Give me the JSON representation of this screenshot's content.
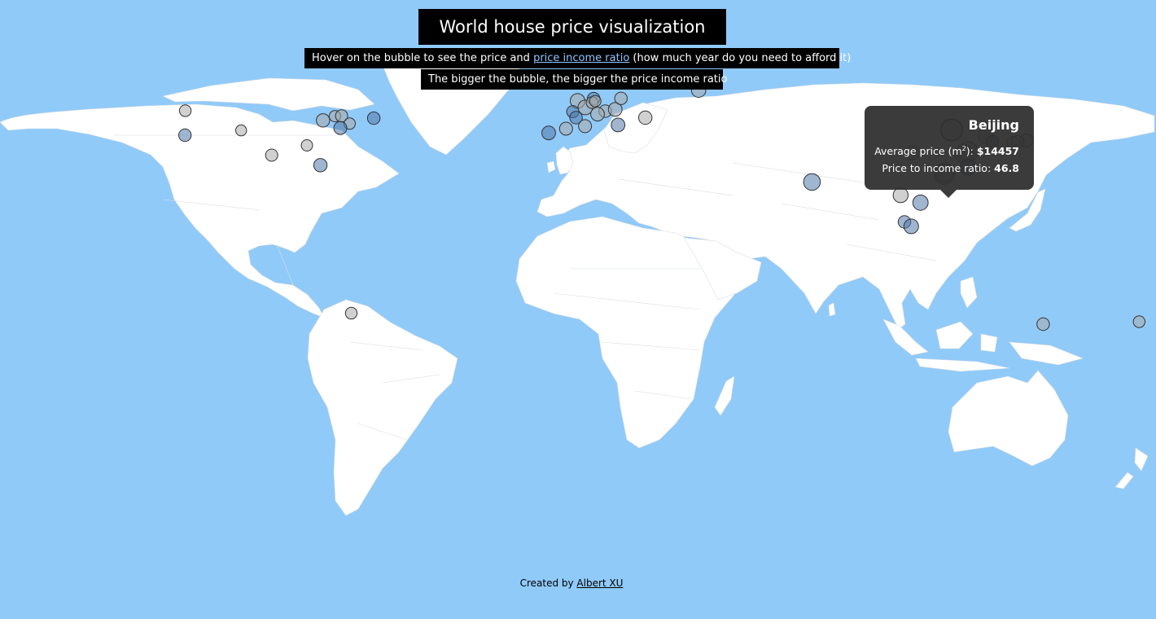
{
  "title": "World house price visualization",
  "subtitle": {
    "before": "Hover on the bubble to see the price and ",
    "link": "price income ratio",
    "after": " (how much year do you need to afford it)"
  },
  "subtitle2": "The bigger the bubble, the bigger the price income ratio",
  "tooltip": {
    "city": "Beijing",
    "price_label": "Average price (m",
    "price_sup": "2",
    "price_suffix": "): ",
    "price": "$14457",
    "ratio_label": "Price to income ratio: ",
    "ratio": "46.8"
  },
  "footer": {
    "prefix": "Created by ",
    "author": "Albert XU"
  },
  "colors": {
    "ocean": "#90caf9",
    "land": "#ffffff",
    "tooltip": "#303030"
  },
  "bubbles": [
    {
      "lon": -122.3,
      "lat": 47.6,
      "ratio": 8,
      "shade": "gray"
    },
    {
      "lon": -122.4,
      "lat": 37.8,
      "ratio": 10,
      "shade": "blue"
    },
    {
      "lon": -104.9,
      "lat": 39.7,
      "ratio": 6,
      "shade": "gray"
    },
    {
      "lon": -79.4,
      "lat": 43.7,
      "ratio": 12,
      "shade": "gray"
    },
    {
      "lon": -75.7,
      "lat": 45.4,
      "ratio": 7,
      "shade": "gray"
    },
    {
      "lon": -73.6,
      "lat": 45.5,
      "ratio": 9,
      "shade": "gray"
    },
    {
      "lon": -71.1,
      "lat": 42.4,
      "ratio": 7,
      "shade": "gray"
    },
    {
      "lon": -74.0,
      "lat": 40.7,
      "ratio": 11,
      "shade": "blue"
    },
    {
      "lon": -84.4,
      "lat": 33.7,
      "ratio": 7,
      "shade": "gray"
    },
    {
      "lon": -63.6,
      "lat": 44.6,
      "ratio": 10,
      "shade": "blue"
    },
    {
      "lon": -95.4,
      "lat": 29.8,
      "ratio": 9,
      "shade": "gray"
    },
    {
      "lon": -80.2,
      "lat": 25.8,
      "ratio": 12,
      "shade": "blue"
    },
    {
      "lon": -70.6,
      "lat": -33.4,
      "ratio": 8,
      "shade": "gray"
    },
    {
      "lon": -9.1,
      "lat": 38.7,
      "ratio": 13,
      "shade": "blue"
    },
    {
      "lon": -3.7,
      "lat": 40.4,
      "ratio": 11,
      "shade": "gray"
    },
    {
      "lon": 2.2,
      "lat": 41.4,
      "ratio": 11,
      "shade": "gray"
    },
    {
      "lon": -0.1,
      "lat": 51.5,
      "ratio": 16,
      "shade": "gray"
    },
    {
      "lon": 2.3,
      "lat": 48.9,
      "ratio": 16,
      "shade": "gray"
    },
    {
      "lon": -1.6,
      "lat": 47.2,
      "ratio": 9,
      "shade": "blue"
    },
    {
      "lon": -0.6,
      "lat": 44.8,
      "ratio": 10,
      "shade": "blue"
    },
    {
      "lon": 4.9,
      "lat": 52.4,
      "ratio": 10,
      "shade": "blue"
    },
    {
      "lon": 4.4,
      "lat": 50.8,
      "ratio": 8,
      "shade": "gray"
    },
    {
      "lon": 5.4,
      "lat": 51.4,
      "ratio": 7,
      "shade": "gray"
    },
    {
      "lon": 8.5,
      "lat": 47.4,
      "ratio": 10,
      "shade": "gray"
    },
    {
      "lon": 6.1,
      "lat": 46.2,
      "ratio": 13,
      "shade": "gray"
    },
    {
      "lon": 11.6,
      "lat": 48.1,
      "ratio": 13,
      "shade": "gray"
    },
    {
      "lon": 12.5,
      "lat": 41.9,
      "ratio": 13,
      "shade": "blue"
    },
    {
      "lon": 13.4,
      "lat": 52.5,
      "ratio": 10,
      "shade": "gray"
    },
    {
      "lon": 18.1,
      "lat": 59.3,
      "ratio": 12,
      "shade": "blue"
    },
    {
      "lon": 24.9,
      "lat": 60.2,
      "ratio": 10,
      "shade": "gray"
    },
    {
      "lon": 21.0,
      "lat": 44.8,
      "ratio": 12,
      "shade": "gray"
    },
    {
      "lon": 37.6,
      "lat": 55.8,
      "ratio": 15,
      "shade": "gray"
    },
    {
      "lon": 72.9,
      "lat": 19.1,
      "ratio": 24,
      "shade": "blue"
    },
    {
      "lon": 116.4,
      "lat": 39.9,
      "ratio": 46.8,
      "shade": "active"
    },
    {
      "lon": 121.5,
      "lat": 31.2,
      "ratio": 38,
      "shade": "gray"
    },
    {
      "lon": 120.2,
      "lat": 30.3,
      "ratio": 30,
      "shade": "gray"
    },
    {
      "lon": 104.1,
      "lat": 30.7,
      "ratio": 13,
      "shade": "gray"
    },
    {
      "lon": 114.1,
      "lat": 22.4,
      "ratio": 44,
      "shade": "blue"
    },
    {
      "lon": 114.1,
      "lat": 22.6,
      "ratio": 28,
      "shade": "gray"
    },
    {
      "lon": 121.6,
      "lat": 25.0,
      "ratio": 20,
      "shade": "blue"
    },
    {
      "lon": 127.0,
      "lat": 37.6,
      "ratio": 17,
      "shade": "gray"
    },
    {
      "lon": 129.1,
      "lat": 35.2,
      "ratio": 10,
      "shade": "blue"
    },
    {
      "lon": 139.7,
      "lat": 35.7,
      "ratio": 12,
      "shade": "gray"
    },
    {
      "lon": 135.5,
      "lat": 34.7,
      "ratio": 10,
      "shade": "gray"
    },
    {
      "lon": 137.0,
      "lat": 35.2,
      "ratio": 9,
      "shade": "gray"
    },
    {
      "lon": 100.5,
      "lat": 13.8,
      "ratio": 17,
      "shade": "gray"
    },
    {
      "lon": 106.7,
      "lat": 10.8,
      "ratio": 18,
      "shade": "blue"
    },
    {
      "lon": 101.7,
      "lat": 3.1,
      "ratio": 10,
      "shade": "blue"
    },
    {
      "lon": 103.8,
      "lat": 1.35,
      "ratio": 16,
      "shade": "blue"
    },
    {
      "lon": 144.9,
      "lat": -37.8,
      "ratio": 10,
      "shade": "gray"
    },
    {
      "lon": 174.8,
      "lat": -36.8,
      "ratio": 8,
      "shade": "gray"
    }
  ]
}
